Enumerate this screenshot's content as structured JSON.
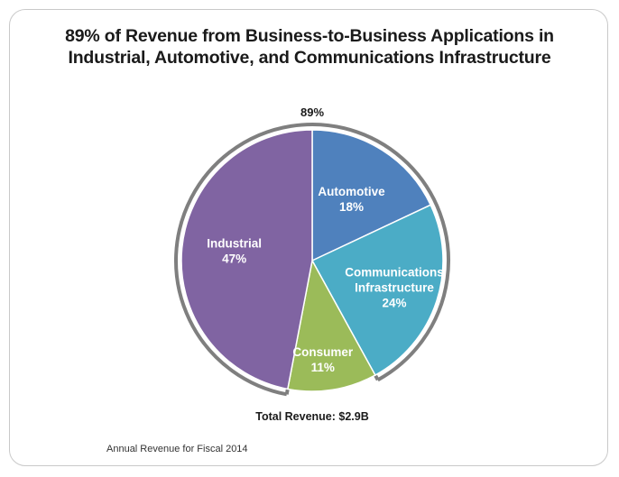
{
  "title_line1": "89% of Revenue from Business-to-Business Applications in",
  "title_line2": "Industrial, Automotive, and Communications Infrastructure",
  "bracket_label": "89%",
  "total_label": "Total Revenue: $2.9B",
  "footnote": "Annual Revenue for Fiscal 2014",
  "chart_data": {
    "type": "pie",
    "title": "89% of Revenue from Business-to-Business Applications in Industrial, Automotive, and Communications Infrastructure",
    "slices": [
      {
        "label": "Automotive",
        "value": 18,
        "text": "18%",
        "color": "#4f81bd"
      },
      {
        "label": "Communications Infrastructure",
        "value": 24,
        "text": "24%",
        "color": "#4bacc6"
      },
      {
        "label": "Consumer",
        "value": 11,
        "text": "11%",
        "color": "#9bbb59"
      },
      {
        "label": "Industrial",
        "value": 47,
        "text": "47%",
        "color": "#8064a2"
      }
    ],
    "bracket": {
      "label": "89%",
      "covers": [
        "Automotive",
        "Communications Infrastructure",
        "Industrial"
      ],
      "color": "#7f7f7f"
    },
    "total": "Total Revenue: $2.9B"
  }
}
